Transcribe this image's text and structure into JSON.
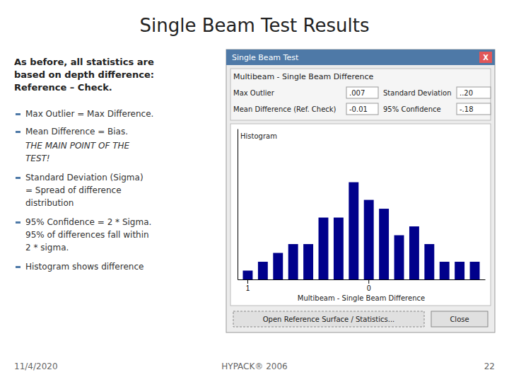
{
  "chart_data": {
    "type": "bar",
    "title": "Single Beam Test Results",
    "x_label": "Multibeam - Single Beam Difference",
    "categories": [
      "1",
      null,
      null,
      null,
      null,
      null,
      null,
      null,
      "0",
      null,
      null,
      null,
      null,
      null,
      null,
      null
    ],
    "values": [
      1,
      2,
      3,
      4,
      4,
      7,
      7,
      11,
      9,
      8,
      5,
      6,
      4,
      2,
      2,
      2
    ],
    "color": "#00008B",
    "ylim": [
      0,
      17.05
    ],
    "tick_labels": "x",
    "grid": false,
    "annotations": [
      "As before, all statistics are",
      "based on depth difference:",
      "Reference – Check.",
      "Max Outlier = Max Difference.",
      "Mean Difference = Bias.",
      "THE MAIN POINT OF THE",
      "TEST!",
      "Standard Deviation (Sigma)",
      "= Spread of difference",
      "distribution",
      "95% Confidence = 2 * Sigma.",
      "95% of differences fall within",
      "2 * sigma.",
      "Histogram shows difference",
      "Single Beam Test",
      "X",
      "Multibeam - Single Beam Difference",
      "Max Outlier",
      ".007",
      "Standard Deviation",
      "..20",
      "Mean Difference (Ref. Check)",
      "-0.01",
      "95% Confidence",
      "-.18",
      "Histogram",
      "Open Reference Surface / Statistics...",
      "Close",
      "11/4/2020",
      "HYPACK® 2006",
      "22"
    ]
  }
}
